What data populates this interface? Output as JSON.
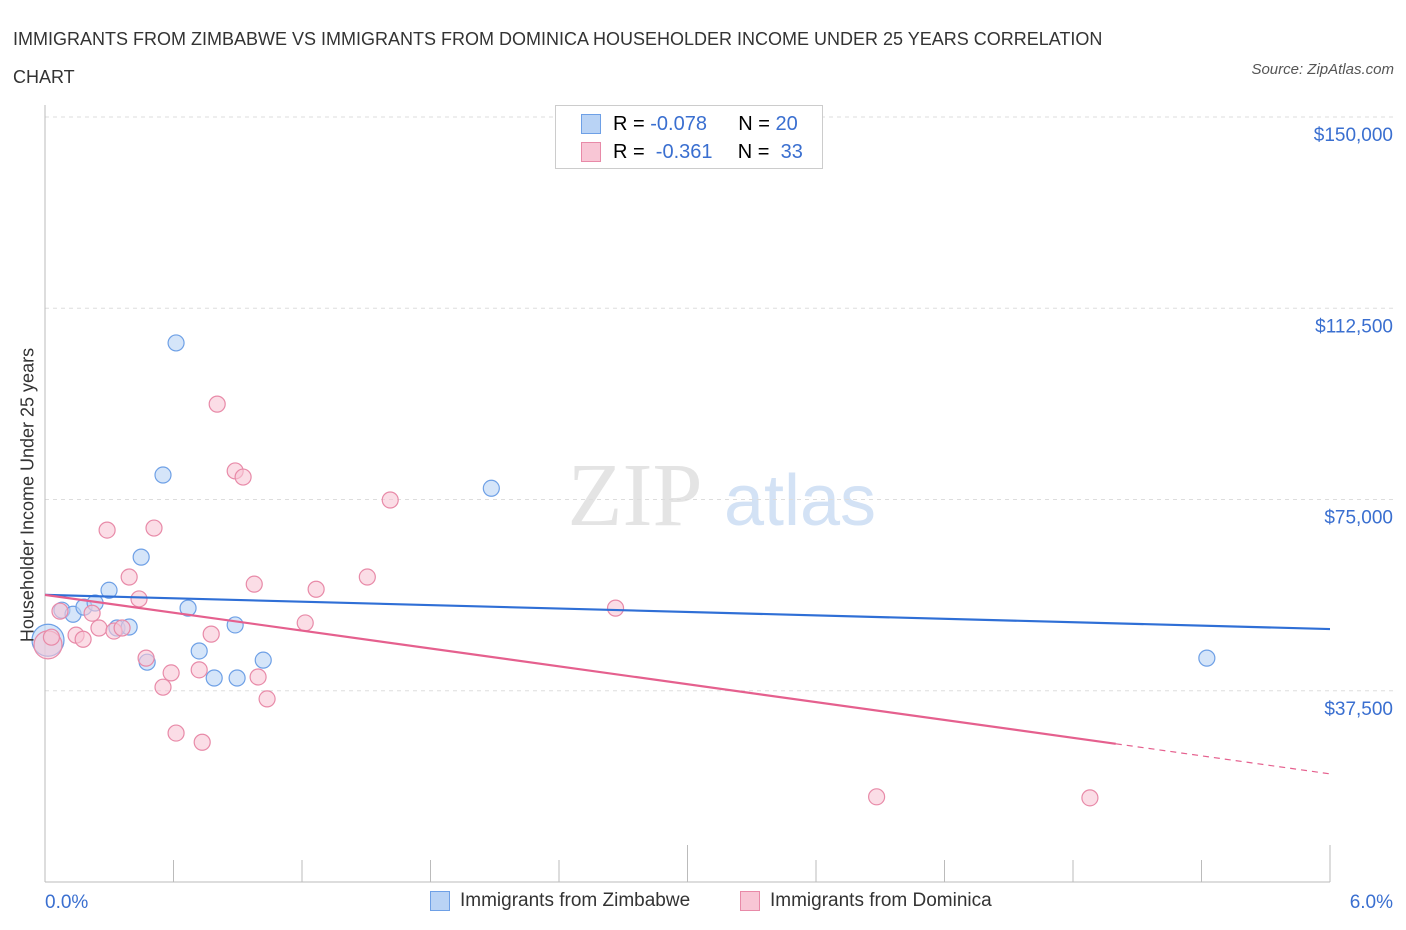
{
  "chart_data": {
    "type": "scatter",
    "title": "IMMIGRANTS FROM ZIMBABWE VS IMMIGRANTS FROM DOMINICA HOUSEHOLDER INCOME UNDER 25 YEARS CORRELATION CHART",
    "source": "Source: ZipAtlas.com",
    "ylabel": "Householder Income Under 25 years",
    "xlim": [
      0,
      6
    ],
    "ylim": [
      0,
      150000
    ],
    "x_tick_labels": [
      "0.0%",
      "6.0%"
    ],
    "y_tick_labels": [
      "$150,000",
      "$112,500",
      "$75,000",
      "$37,500"
    ],
    "y_ticks": [
      150000,
      112500,
      75000,
      37500
    ],
    "watermark": "ZIPatlas",
    "series": [
      {
        "name": "Immigrants from Zimbabwe",
        "color": "#6ea0e6",
        "fill": "#b9d3f5",
        "line": "#2f6fd6",
        "R": "-0.078",
        "N": "20",
        "trend": [
          [
            0,
            56300
          ],
          [
            6,
            49600
          ]
        ],
        "points": [
          [
            0.014,
            47400
          ],
          [
            0.079,
            53300
          ],
          [
            0.131,
            52500
          ],
          [
            0.182,
            53900
          ],
          [
            0.234,
            54700
          ],
          [
            0.299,
            57200
          ],
          [
            0.336,
            49800
          ],
          [
            0.393,
            50000
          ],
          [
            0.449,
            63700
          ],
          [
            0.477,
            43100
          ],
          [
            0.551,
            79800
          ],
          [
            0.612,
            105700
          ],
          [
            0.668,
            53700
          ],
          [
            0.72,
            45300
          ],
          [
            0.79,
            40000
          ],
          [
            0.888,
            50400
          ],
          [
            0.897,
            40000
          ],
          [
            1.019,
            43500
          ],
          [
            2.084,
            77200
          ],
          [
            5.425,
            43900
          ]
        ]
      },
      {
        "name": "Immigrants from Dominica",
        "color": "#e88aa8",
        "fill": "#f8c6d5",
        "line": "#e5608e",
        "R": "-0.361",
        "N": "33",
        "trend": [
          [
            0,
            56300
          ],
          [
            5.0,
            27100
          ],
          [
            6,
            21200
          ]
        ],
        "points": [
          [
            0.014,
            46500
          ],
          [
            0.03,
            48000
          ],
          [
            0.07,
            53100
          ],
          [
            0.145,
            48400
          ],
          [
            0.178,
            47600
          ],
          [
            0.22,
            52700
          ],
          [
            0.252,
            49800
          ],
          [
            0.29,
            69000
          ],
          [
            0.322,
            49200
          ],
          [
            0.36,
            49800
          ],
          [
            0.393,
            59800
          ],
          [
            0.439,
            55500
          ],
          [
            0.472,
            43900
          ],
          [
            0.509,
            69400
          ],
          [
            0.551,
            38200
          ],
          [
            0.589,
            41000
          ],
          [
            0.612,
            29200
          ],
          [
            0.72,
            41600
          ],
          [
            0.734,
            27400
          ],
          [
            0.776,
            48600
          ],
          [
            0.804,
            93700
          ],
          [
            0.888,
            80600
          ],
          [
            0.925,
            79400
          ],
          [
            0.977,
            58400
          ],
          [
            0.995,
            40200
          ],
          [
            1.037,
            35900
          ],
          [
            1.215,
            50800
          ],
          [
            1.266,
            57400
          ],
          [
            1.505,
            59800
          ],
          [
            1.612,
            74900
          ],
          [
            2.664,
            53700
          ],
          [
            3.883,
            16700
          ],
          [
            4.879,
            16500
          ]
        ]
      }
    ]
  }
}
